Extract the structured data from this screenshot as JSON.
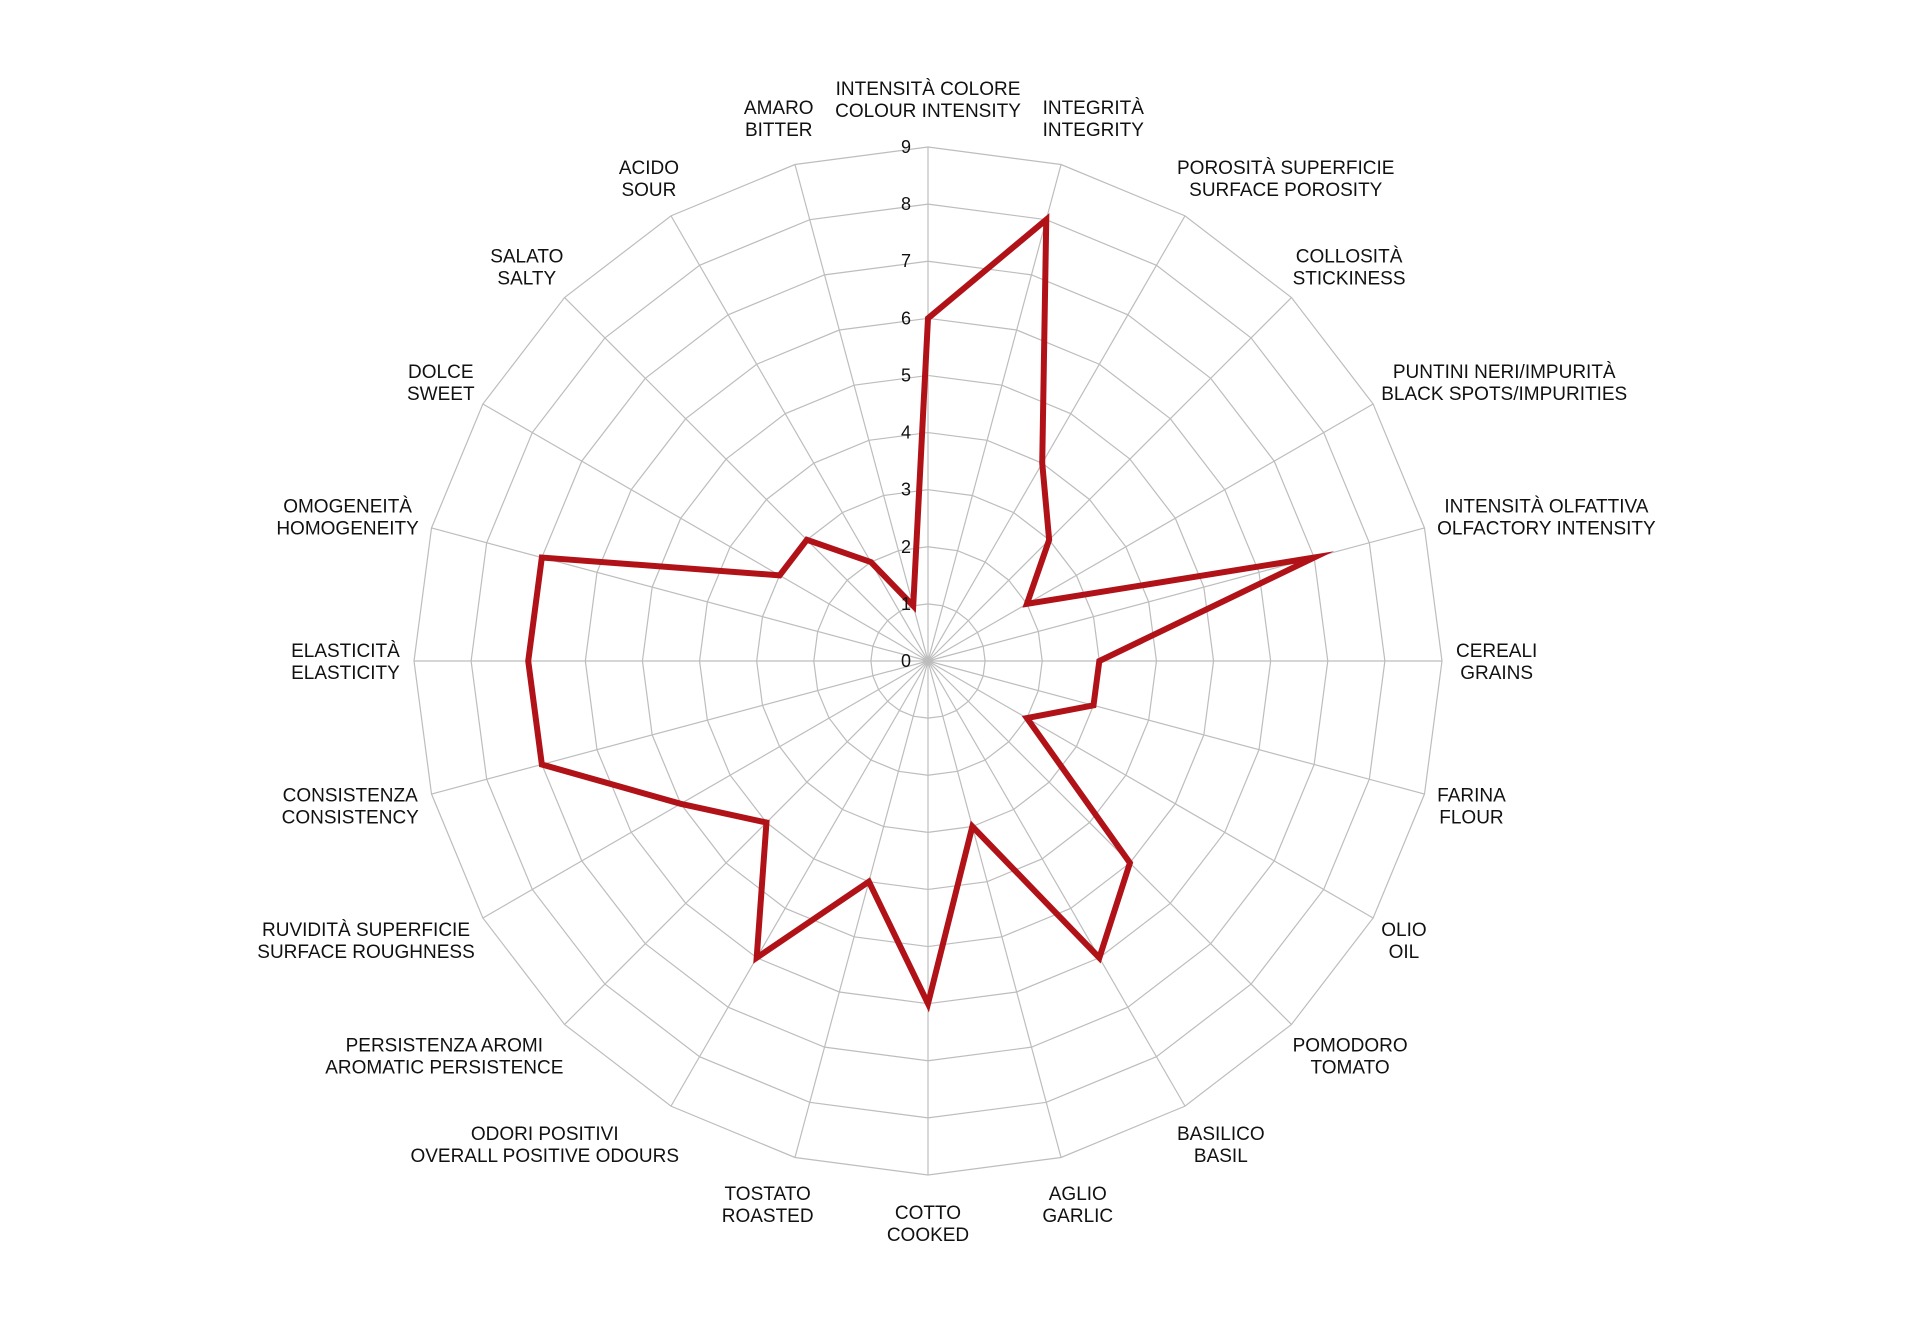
{
  "chart_data": {
    "type": "radar",
    "title": "",
    "axes": [
      [
        "INTENSITÀ COLORE",
        "COLOUR INTENSITY"
      ],
      [
        "INTEGRITÀ",
        "INTEGRITY"
      ],
      [
        "POROSITÀ SUPERFICIE",
        "SURFACE POROSITY"
      ],
      [
        "COLLOSITÀ",
        "STICKINESS"
      ],
      [
        "PUNTINI NERI/IMPURITÀ",
        "BLACK SPOTS/IMPURITIES"
      ],
      [
        "INTENSITÀ OLFATTIVA",
        "OLFACTORY INTENSITY"
      ],
      [
        "CEREALI",
        "GRAINS"
      ],
      [
        "FARINA",
        "FLOUR"
      ],
      [
        "OLIO",
        "OIL"
      ],
      [
        "POMODORO",
        "TOMATO"
      ],
      [
        "BASILICO",
        "BASIL"
      ],
      [
        "AGLIO",
        "GARLIC"
      ],
      [
        "COTTO",
        "COOKED"
      ],
      [
        "TOSTATO",
        "ROASTED"
      ],
      [
        "ODORI POSITIVI",
        "OVERALL POSITIVE ODOURS"
      ],
      [
        "PERSISTENZA AROMI",
        "AROMATIC PERSISTENCE"
      ],
      [
        "RUVIDITÀ SUPERFICIE",
        "SURFACE ROUGHNESS"
      ],
      [
        "CONSISTENZA",
        "CONSISTENCY"
      ],
      [
        "ELASTICITÀ",
        "ELASTICITY"
      ],
      [
        "OMOGENEITÀ",
        "HOMOGENEITY"
      ],
      [
        "DOLCE",
        "SWEET"
      ],
      [
        "SALATO",
        "SALTY"
      ],
      [
        "ACIDO",
        "SOUR"
      ],
      [
        "AMARO",
        "BITTER"
      ]
    ],
    "series": [
      {
        "values": [
          6,
          8,
          4,
          3,
          2,
          7,
          3,
          3,
          2,
          5,
          6,
          3,
          6,
          4,
          6,
          4,
          5,
          7,
          7,
          7,
          3,
          3,
          2,
          1
        ]
      }
    ],
    "ticks": [
      "0",
      "1",
      "2",
      "3",
      "4",
      "5",
      "6",
      "7",
      "8",
      "9"
    ],
    "rlim": [
      0,
      9
    ],
    "grid": true,
    "colors": {
      "series": "#b01218",
      "grid": "#bdbdbd",
      "text": "#111111"
    }
  }
}
